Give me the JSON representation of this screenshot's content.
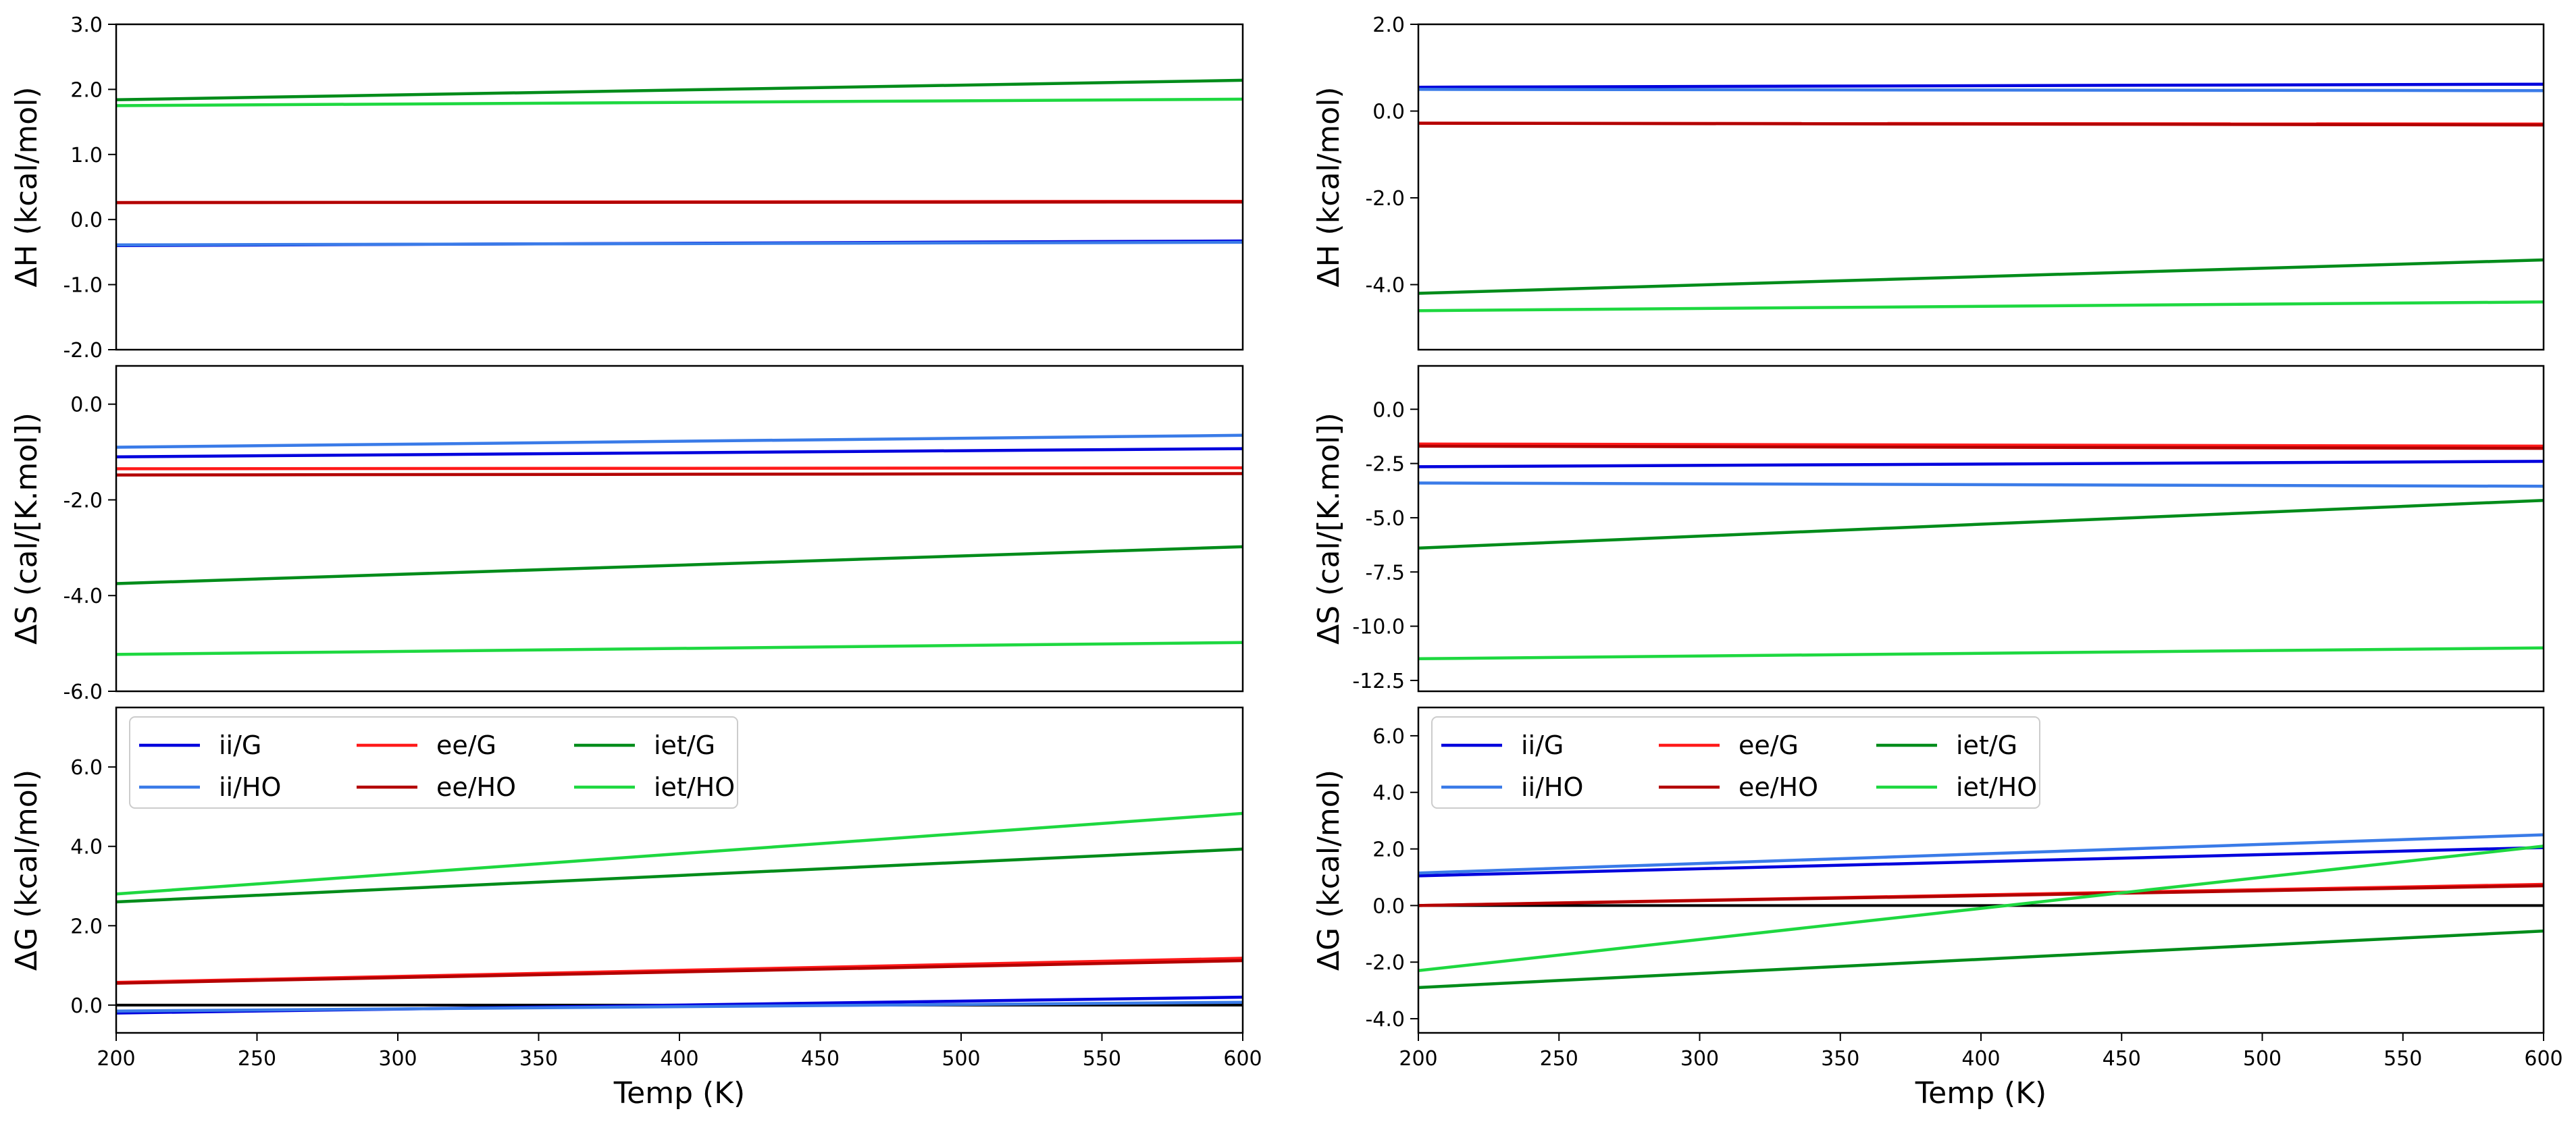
{
  "figure": {
    "colors": {
      "ii/G": "#0000dd",
      "ii/HO": "#3a7be8",
      "ee/G": "#ff1a1a",
      "ee/HO": "#b30000",
      "iet/G": "#008c1a",
      "iet/HO": "#1ed840",
      "zero_line": "#000000"
    },
    "legend_order": [
      "ii/G",
      "ii/HO",
      "ee/G",
      "ee/HO",
      "iet/G",
      "iet/HO"
    ]
  },
  "chart_data": [
    {
      "id": "left-dH",
      "type": "line",
      "column": "left",
      "row": 0,
      "ylabel": "ΔH (kcal/mol)",
      "xlabel": "",
      "xlim": [
        200,
        600
      ],
      "ylim": [
        -2.0,
        3.0
      ],
      "xticks": [],
      "xtick_labels": [],
      "yticks": [
        -2.0,
        -1.0,
        0.0,
        1.0,
        2.0,
        3.0
      ],
      "ytick_labels": [
        "-2.0",
        "-1.0",
        "0.0",
        "1.0",
        "2.0",
        "3.0"
      ],
      "zero_line": false,
      "legend": false,
      "x": [
        200,
        600
      ],
      "series": [
        {
          "name": "ii/G",
          "values": [
            -0.4,
            -0.33
          ]
        },
        {
          "name": "ii/HO",
          "values": [
            -0.39,
            -0.35
          ]
        },
        {
          "name": "ee/G",
          "values": [
            0.26,
            0.28
          ]
        },
        {
          "name": "ee/HO",
          "values": [
            0.26,
            0.27
          ]
        },
        {
          "name": "iet/G",
          "values": [
            1.84,
            2.14
          ]
        },
        {
          "name": "iet/HO",
          "values": [
            1.75,
            1.85
          ]
        }
      ]
    },
    {
      "id": "left-dS",
      "type": "line",
      "column": "left",
      "row": 1,
      "ylabel": "ΔS (cal/[K.mol])",
      "xlabel": "",
      "xlim": [
        200,
        600
      ],
      "ylim": [
        -6.0,
        0.8
      ],
      "xticks": [],
      "xtick_labels": [],
      "yticks": [
        -6.0,
        -4.0,
        -2.0,
        0.0
      ],
      "ytick_labels": [
        "-6.0",
        "-4.0",
        "-2.0",
        "0.0"
      ],
      "zero_line": false,
      "legend": false,
      "x": [
        200,
        600
      ],
      "series": [
        {
          "name": "ii/G",
          "values": [
            -1.1,
            -0.93
          ]
        },
        {
          "name": "ii/HO",
          "values": [
            -0.9,
            -0.65
          ]
        },
        {
          "name": "ee/G",
          "values": [
            -1.35,
            -1.33
          ]
        },
        {
          "name": "ee/HO",
          "values": [
            -1.48,
            -1.45
          ]
        },
        {
          "name": "iet/G",
          "values": [
            -3.75,
            -2.98
          ]
        },
        {
          "name": "iet/HO",
          "values": [
            -5.23,
            -4.98
          ]
        }
      ]
    },
    {
      "id": "left-dG",
      "type": "line",
      "column": "left",
      "row": 2,
      "ylabel": "ΔG (kcal/mol)",
      "xlabel": "Temp (K)",
      "xlim": [
        200,
        600
      ],
      "ylim": [
        -0.7,
        7.5
      ],
      "xticks": [
        200,
        250,
        300,
        350,
        400,
        450,
        500,
        550,
        600
      ],
      "xtick_labels": [
        "200",
        "250",
        "300",
        "350",
        "400",
        "450",
        "500",
        "550",
        "600"
      ],
      "yticks": [
        0.0,
        2.0,
        4.0,
        6.0
      ],
      "ytick_labels": [
        "0.0",
        "2.0",
        "4.0",
        "6.0"
      ],
      "zero_line": true,
      "legend": true,
      "x": [
        200,
        600
      ],
      "series": [
        {
          "name": "ii/G",
          "values": [
            -0.2,
            0.2
          ]
        },
        {
          "name": "ii/HO",
          "values": [
            -0.15,
            0.07
          ]
        },
        {
          "name": "ee/G",
          "values": [
            0.57,
            1.18
          ]
        },
        {
          "name": "ee/HO",
          "values": [
            0.55,
            1.12
          ]
        },
        {
          "name": "iet/G",
          "values": [
            2.6,
            3.93
          ]
        },
        {
          "name": "iet/HO",
          "values": [
            2.8,
            4.83
          ]
        }
      ]
    },
    {
      "id": "right-dH",
      "type": "line",
      "column": "right",
      "row": 0,
      "ylabel": "ΔH (kcal/mol)",
      "xlabel": "",
      "xlim": [
        200,
        600
      ],
      "ylim": [
        -5.5,
        2.0
      ],
      "xticks": [],
      "xtick_labels": [],
      "yticks": [
        -4.0,
        -2.0,
        0.0,
        2.0
      ],
      "ytick_labels": [
        "-4.0",
        "-2.0",
        "0.0",
        "2.0"
      ],
      "zero_line": false,
      "legend": false,
      "x": [
        200,
        600
      ],
      "series": [
        {
          "name": "ii/G",
          "values": [
            0.55,
            0.62
          ]
        },
        {
          "name": "ii/HO",
          "values": [
            0.5,
            0.47
          ]
        },
        {
          "name": "ee/G",
          "values": [
            -0.28,
            -0.3
          ]
        },
        {
          "name": "ee/HO",
          "values": [
            -0.28,
            -0.32
          ]
        },
        {
          "name": "iet/G",
          "values": [
            -4.2,
            -3.43
          ]
        },
        {
          "name": "iet/HO",
          "values": [
            -4.6,
            -4.4
          ]
        }
      ]
    },
    {
      "id": "right-dS",
      "type": "line",
      "column": "right",
      "row": 1,
      "ylabel": "ΔS (cal/[K.mol])",
      "xlabel": "",
      "xlim": [
        200,
        600
      ],
      "ylim": [
        -13.0,
        2.0
      ],
      "xticks": [],
      "xtick_labels": [],
      "yticks": [
        -12.5,
        -10.0,
        -7.5,
        -5.0,
        -2.5,
        0.0
      ],
      "ytick_labels": [
        "-12.5",
        "-10.0",
        "-7.5",
        "-5.0",
        "-2.5",
        "0.0"
      ],
      "zero_line": false,
      "legend": false,
      "x": [
        200,
        600
      ],
      "series": [
        {
          "name": "ii/G",
          "values": [
            -2.65,
            -2.4
          ]
        },
        {
          "name": "ii/HO",
          "values": [
            -3.4,
            -3.55
          ]
        },
        {
          "name": "ee/G",
          "values": [
            -1.6,
            -1.7
          ]
        },
        {
          "name": "ee/HO",
          "values": [
            -1.7,
            -1.8
          ]
        },
        {
          "name": "iet/G",
          "values": [
            -6.4,
            -4.2
          ]
        },
        {
          "name": "iet/HO",
          "values": [
            -11.5,
            -11.0
          ]
        }
      ]
    },
    {
      "id": "right-dG",
      "type": "line",
      "column": "right",
      "row": 2,
      "ylabel": "ΔG (kcal/mol)",
      "xlabel": "Temp (K)",
      "xlim": [
        200,
        600
      ],
      "ylim": [
        -4.5,
        7.0
      ],
      "xticks": [
        200,
        250,
        300,
        350,
        400,
        450,
        500,
        550,
        600
      ],
      "xtick_labels": [
        "200",
        "250",
        "300",
        "350",
        "400",
        "450",
        "500",
        "550",
        "600"
      ],
      "yticks": [
        -4.0,
        -2.0,
        0.0,
        2.0,
        4.0,
        6.0
      ],
      "ytick_labels": [
        "-4.0",
        "-2.0",
        "0.0",
        "2.0",
        "4.0",
        "6.0"
      ],
      "zero_line": true,
      "legend": true,
      "x": [
        200,
        600
      ],
      "series": [
        {
          "name": "ii/G",
          "values": [
            1.05,
            2.05
          ]
        },
        {
          "name": "ii/HO",
          "values": [
            1.15,
            2.5
          ]
        },
        {
          "name": "ee/G",
          "values": [
            0.0,
            0.75
          ]
        },
        {
          "name": "ee/HO",
          "values": [
            0.0,
            0.7
          ]
        },
        {
          "name": "iet/G",
          "values": [
            -2.9,
            -0.9
          ]
        },
        {
          "name": "iet/HO",
          "values": [
            -2.3,
            2.1
          ]
        }
      ]
    }
  ]
}
